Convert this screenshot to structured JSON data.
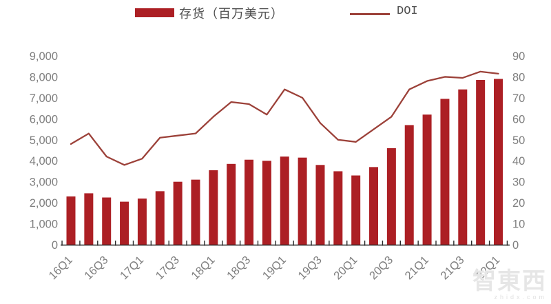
{
  "legend": {
    "series1_label": "存货（百万美元）",
    "series2_label": "DOI"
  },
  "watermark": {
    "text": "智東西",
    "subtext": "zhidx.com"
  },
  "colors": {
    "bar": "#AC1F24",
    "line": "#9C4139",
    "axis_text": "#7f7f7f",
    "axis_line": "#262626"
  },
  "chart_data": {
    "type": "bar",
    "title": "",
    "xlabel": "",
    "ylabel": "",
    "grid": false,
    "legend_position": "top",
    "categories": [
      "16Q1",
      "16Q2",
      "16Q3",
      "16Q4",
      "17Q1",
      "17Q2",
      "17Q3",
      "17Q4",
      "18Q1",
      "18Q2",
      "18Q3",
      "18Q4",
      "19Q1",
      "19Q2",
      "19Q3",
      "19Q4",
      "20Q1",
      "20Q2",
      "20Q3",
      "20Q4",
      "21Q1",
      "21Q2",
      "21Q3",
      "21Q4",
      "22Q1"
    ],
    "x_tick_label_every": 2,
    "series": [
      {
        "name": "存货（百万美元）",
        "type": "bar",
        "axis": "left",
        "color": "#AC1F24",
        "values": [
          2300,
          2450,
          2250,
          2050,
          2200,
          2550,
          3000,
          3100,
          3550,
          3850,
          4050,
          4000,
          4200,
          4150,
          3800,
          3500,
          3300,
          3700,
          4600,
          5700,
          6200,
          6950,
          7400,
          7850,
          7900
        ]
      },
      {
        "name": "DOI",
        "type": "line",
        "axis": "right",
        "color": "#9C4139",
        "values": [
          48,
          53,
          42,
          38,
          41,
          51,
          52,
          53,
          61,
          68,
          67,
          62,
          74,
          70,
          58,
          50,
          49,
          55,
          61,
          74,
          78,
          80,
          79.5,
          82.5,
          81.5
        ]
      }
    ],
    "left_axis": {
      "min": 0,
      "max": 9000,
      "step": 1000,
      "tick_labels": [
        "0",
        "1,000",
        "2,000",
        "3,000",
        "4,000",
        "5,000",
        "6,000",
        "7,000",
        "8,000",
        "9,000"
      ]
    },
    "right_axis": {
      "min": 0,
      "max": 90,
      "step": 10,
      "tick_labels": [
        "0",
        "10",
        "20",
        "30",
        "40",
        "50",
        "60",
        "70",
        "80",
        "90"
      ]
    }
  }
}
